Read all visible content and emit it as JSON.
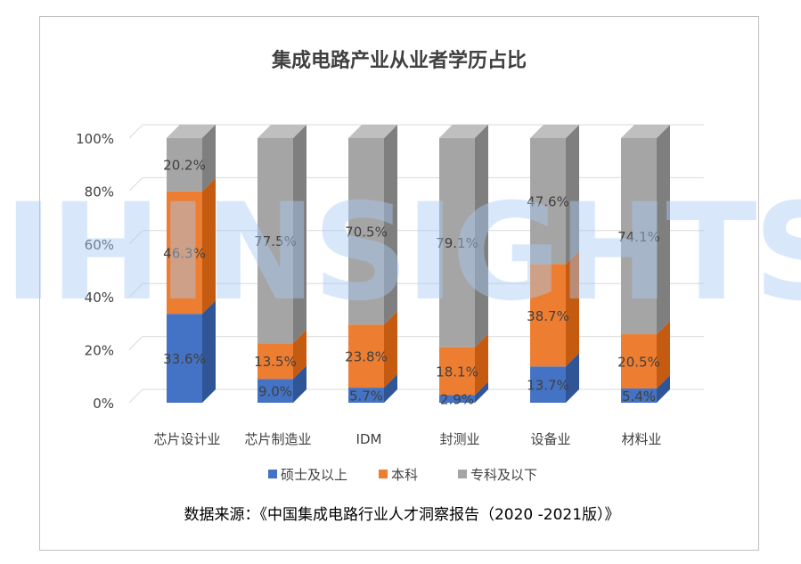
{
  "chart_data": {
    "type": "bar",
    "stacked": true,
    "three_d": true,
    "title": "集成电路产业从业者学历占比",
    "categories": [
      "芯片设计业",
      "芯片制造业",
      "IDM",
      "封测业",
      "设备业",
      "材料业"
    ],
    "series": [
      {
        "name": "硕士及以上",
        "color": "#4472c4",
        "side_color": "#2f5597",
        "values": [
          33.6,
          9.0,
          5.7,
          2.9,
          13.7,
          5.4
        ],
        "labels": [
          "33.6%",
          "9.0%",
          "5.7%",
          "2.9%",
          "13.7%",
          "5.4%"
        ]
      },
      {
        "name": "本科",
        "color": "#ed7d31",
        "side_color": "#c55a11",
        "values": [
          46.3,
          13.5,
          23.8,
          18.1,
          38.7,
          20.5
        ],
        "labels": [
          "46.3%",
          "13.5%",
          "23.8%",
          "18.1%",
          "38.7%",
          "20.5%"
        ]
      },
      {
        "name": "专科及以下",
        "color": "#a5a5a5",
        "side_color": "#7f7f7f",
        "values": [
          20.2,
          77.5,
          70.5,
          79.1,
          47.6,
          74.1
        ],
        "labels": [
          "20.2%",
          "77.5%",
          "70.5%",
          "79.1%",
          "47.6%",
          "74.1%"
        ]
      }
    ],
    "y_ticks": [
      "0%",
      "20%",
      "40%",
      "60%",
      "80%",
      "100%"
    ],
    "ylim": [
      0,
      100
    ],
    "grid": true,
    "legend": "bottom"
  },
  "source_note": "数据来源：《中国集成电路行业人才洞察报告（2020 -2021版）》",
  "watermark": "JIHINSIGHTS"
}
